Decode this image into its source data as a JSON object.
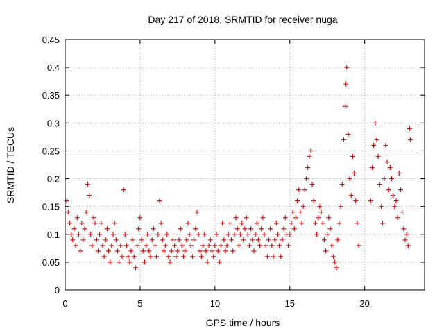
{
  "chart_data": {
    "type": "scatter",
    "title": "Day 217 of 2018, SRMTID for receiver nuga",
    "xlabel": "GPS time / hours",
    "ylabel": "SRMTID / TECUs",
    "xlim": [
      0,
      24
    ],
    "ylim": [
      0,
      0.45
    ],
    "x_ticks": [
      0,
      5,
      10,
      15,
      20
    ],
    "y_ticks": [
      0,
      0.05,
      0.1,
      0.15,
      0.2,
      0.25,
      0.3,
      0.35,
      0.4,
      0.45
    ],
    "x_tick_labels": [
      "0",
      "5",
      "10",
      "15",
      "20"
    ],
    "y_tick_labels": [
      "0",
      "0.05",
      "0.1",
      "0.15",
      "0.2",
      "0.25",
      "0.3",
      "0.35",
      "0.4",
      "0.45"
    ],
    "grid": true,
    "marker": "+",
    "color": "#ff0000",
    "series": [
      {
        "name": "SRMTID",
        "points": [
          [
            0.1,
            0.16
          ],
          [
            0.2,
            0.14
          ],
          [
            0.3,
            0.12
          ],
          [
            0.4,
            0.1
          ],
          [
            0.5,
            0.09
          ],
          [
            0.6,
            0.11
          ],
          [
            0.7,
            0.08
          ],
          [
            0.8,
            0.13
          ],
          [
            0.9,
            0.1
          ],
          [
            1.0,
            0.07
          ],
          [
            1.1,
            0.12
          ],
          [
            1.2,
            0.09
          ],
          [
            1.3,
            0.11
          ],
          [
            1.4,
            0.14
          ],
          [
            1.5,
            0.19
          ],
          [
            1.6,
            0.17
          ],
          [
            1.7,
            0.1
          ],
          [
            1.8,
            0.08
          ],
          [
            1.9,
            0.13
          ],
          [
            2.0,
            0.12
          ],
          [
            2.1,
            0.09
          ],
          [
            2.2,
            0.07
          ],
          [
            2.3,
            0.1
          ],
          [
            2.4,
            0.12
          ],
          [
            2.5,
            0.08
          ],
          [
            2.6,
            0.06
          ],
          [
            2.7,
            0.09
          ],
          [
            2.8,
            0.11
          ],
          [
            2.9,
            0.07
          ],
          [
            3.0,
            0.05
          ],
          [
            3.1,
            0.08
          ],
          [
            3.2,
            0.1
          ],
          [
            3.3,
            0.12
          ],
          [
            3.4,
            0.09
          ],
          [
            3.5,
            0.07
          ],
          [
            3.6,
            0.05
          ],
          [
            3.7,
            0.08
          ],
          [
            3.8,
            0.06
          ],
          [
            3.9,
            0.18
          ],
          [
            4.0,
            0.1
          ],
          [
            4.1,
            0.08
          ],
          [
            4.2,
            0.06
          ],
          [
            4.3,
            0.05
          ],
          [
            4.4,
            0.07
          ],
          [
            4.5,
            0.09
          ],
          [
            4.6,
            0.06
          ],
          [
            4.7,
            0.04
          ],
          [
            4.8,
            0.08
          ],
          [
            4.9,
            0.11
          ],
          [
            5.0,
            0.13
          ],
          [
            5.1,
            0.09
          ],
          [
            5.2,
            0.07
          ],
          [
            5.3,
            0.05
          ],
          [
            5.4,
            0.08
          ],
          [
            5.5,
            0.1
          ],
          [
            5.6,
            0.07
          ],
          [
            5.7,
            0.06
          ],
          [
            5.8,
            0.09
          ],
          [
            5.9,
            0.11
          ],
          [
            6.0,
            0.08
          ],
          [
            6.1,
            0.06
          ],
          [
            6.2,
            0.1
          ],
          [
            6.3,
            0.16
          ],
          [
            6.4,
            0.12
          ],
          [
            6.5,
            0.09
          ],
          [
            6.6,
            0.07
          ],
          [
            6.7,
            0.08
          ],
          [
            6.8,
            0.1
          ],
          [
            6.9,
            0.06
          ],
          [
            7.0,
            0.05
          ],
          [
            7.1,
            0.07
          ],
          [
            7.2,
            0.09
          ],
          [
            7.3,
            0.08
          ],
          [
            7.4,
            0.06
          ],
          [
            7.5,
            0.07
          ],
          [
            7.6,
            0.09
          ],
          [
            7.7,
            0.11
          ],
          [
            7.8,
            0.08
          ],
          [
            7.9,
            0.06
          ],
          [
            8.0,
            0.07
          ],
          [
            8.1,
            0.09
          ],
          [
            8.2,
            0.12
          ],
          [
            8.3,
            0.1
          ],
          [
            8.4,
            0.08
          ],
          [
            8.5,
            0.06
          ],
          [
            8.6,
            0.09
          ],
          [
            8.7,
            0.11
          ],
          [
            8.8,
            0.14
          ],
          [
            8.9,
            0.1
          ],
          [
            9.0,
            0.07
          ],
          [
            9.1,
            0.06
          ],
          [
            9.2,
            0.08
          ],
          [
            9.3,
            0.1
          ],
          [
            9.4,
            0.07
          ],
          [
            9.5,
            0.05
          ],
          [
            9.6,
            0.08
          ],
          [
            9.7,
            0.09
          ],
          [
            9.8,
            0.07
          ],
          [
            9.9,
            0.06
          ],
          [
            10.0,
            0.08
          ],
          [
            10.1,
            0.1
          ],
          [
            10.2,
            0.07
          ],
          [
            10.3,
            0.05
          ],
          [
            10.4,
            0.08
          ],
          [
            10.5,
            0.12
          ],
          [
            10.6,
            0.09
          ],
          [
            10.7,
            0.07
          ],
          [
            10.8,
            0.08
          ],
          [
            10.9,
            0.1
          ],
          [
            11.0,
            0.12
          ],
          [
            11.1,
            0.09
          ],
          [
            11.2,
            0.07
          ],
          [
            11.3,
            0.1
          ],
          [
            11.4,
            0.13
          ],
          [
            11.5,
            0.11
          ],
          [
            11.6,
            0.08
          ],
          [
            11.7,
            0.1
          ],
          [
            11.8,
            0.12
          ],
          [
            11.9,
            0.09
          ],
          [
            12.0,
            0.11
          ],
          [
            12.1,
            0.13
          ],
          [
            12.2,
            0.1
          ],
          [
            12.3,
            0.08
          ],
          [
            12.4,
            0.11
          ],
          [
            12.5,
            0.09
          ],
          [
            12.6,
            0.07
          ],
          [
            12.7,
            0.1
          ],
          [
            12.8,
            0.12
          ],
          [
            12.9,
            0.09
          ],
          [
            13.0,
            0.08
          ],
          [
            13.1,
            0.11
          ],
          [
            13.2,
            0.13
          ],
          [
            13.3,
            0.1
          ],
          [
            13.4,
            0.08
          ],
          [
            13.5,
            0.06
          ],
          [
            13.6,
            0.09
          ],
          [
            13.7,
            0.11
          ],
          [
            13.8,
            0.08
          ],
          [
            13.9,
            0.06
          ],
          [
            14.0,
            0.09
          ],
          [
            14.1,
            0.12
          ],
          [
            14.2,
            0.1
          ],
          [
            14.3,
            0.08
          ],
          [
            14.4,
            0.06
          ],
          [
            14.5,
            0.09
          ],
          [
            14.6,
            0.11
          ],
          [
            14.7,
            0.13
          ],
          [
            14.8,
            0.1
          ],
          [
            14.9,
            0.08
          ],
          [
            15.0,
            0.1
          ],
          [
            15.1,
            0.12
          ],
          [
            15.2,
            0.14
          ],
          [
            15.3,
            0.11
          ],
          [
            15.4,
            0.13
          ],
          [
            15.5,
            0.16
          ],
          [
            15.6,
            0.18
          ],
          [
            15.7,
            0.14
          ],
          [
            15.8,
            0.12
          ],
          [
            15.9,
            0.15
          ],
          [
            16.0,
            0.18
          ],
          [
            16.1,
            0.2
          ],
          [
            16.2,
            0.22
          ],
          [
            16.3,
            0.24
          ],
          [
            16.4,
            0.25
          ],
          [
            16.5,
            0.19
          ],
          [
            16.6,
            0.16
          ],
          [
            16.7,
            0.12
          ],
          [
            16.8,
            0.1
          ],
          [
            16.9,
            0.13
          ],
          [
            17.0,
            0.15
          ],
          [
            17.1,
            0.14
          ],
          [
            17.2,
            0.12
          ],
          [
            17.3,
            0.09
          ],
          [
            17.4,
            0.07
          ],
          [
            17.5,
            0.1
          ],
          [
            17.6,
            0.13
          ],
          [
            17.7,
            0.11
          ],
          [
            17.8,
            0.08
          ],
          [
            17.9,
            0.06
          ],
          [
            18.0,
            0.05
          ],
          [
            18.1,
            0.04
          ],
          [
            18.2,
            0.09
          ],
          [
            18.3,
            0.12
          ],
          [
            18.4,
            0.15
          ],
          [
            18.5,
            0.19
          ],
          [
            18.6,
            0.27
          ],
          [
            18.7,
            0.33
          ],
          [
            18.75,
            0.37
          ],
          [
            18.8,
            0.4
          ],
          [
            18.9,
            0.28
          ],
          [
            19.0,
            0.2
          ],
          [
            19.1,
            0.17
          ],
          [
            19.2,
            0.24
          ],
          [
            19.3,
            0.21
          ],
          [
            19.4,
            0.16
          ],
          [
            19.5,
            0.12
          ],
          [
            19.6,
            0.08
          ],
          [
            20.4,
            0.16
          ],
          [
            20.5,
            0.22
          ],
          [
            20.6,
            0.26
          ],
          [
            20.7,
            0.3
          ],
          [
            20.8,
            0.27
          ],
          [
            20.9,
            0.24
          ],
          [
            21.0,
            0.19
          ],
          [
            21.1,
            0.15
          ],
          [
            21.2,
            0.12
          ],
          [
            21.3,
            0.2
          ],
          [
            21.4,
            0.26
          ],
          [
            21.5,
            0.23
          ],
          [
            21.6,
            0.18
          ],
          [
            21.7,
            0.22
          ],
          [
            21.8,
            0.2
          ],
          [
            21.9,
            0.17
          ],
          [
            22.0,
            0.15
          ],
          [
            22.1,
            0.16
          ],
          [
            22.2,
            0.13
          ],
          [
            22.3,
            0.21
          ],
          [
            22.4,
            0.18
          ],
          [
            22.5,
            0.14
          ],
          [
            22.6,
            0.11
          ],
          [
            22.7,
            0.09
          ],
          [
            22.8,
            0.1
          ],
          [
            22.9,
            0.08
          ],
          [
            23.0,
            0.29
          ],
          [
            23.05,
            0.27
          ]
        ]
      }
    ]
  }
}
